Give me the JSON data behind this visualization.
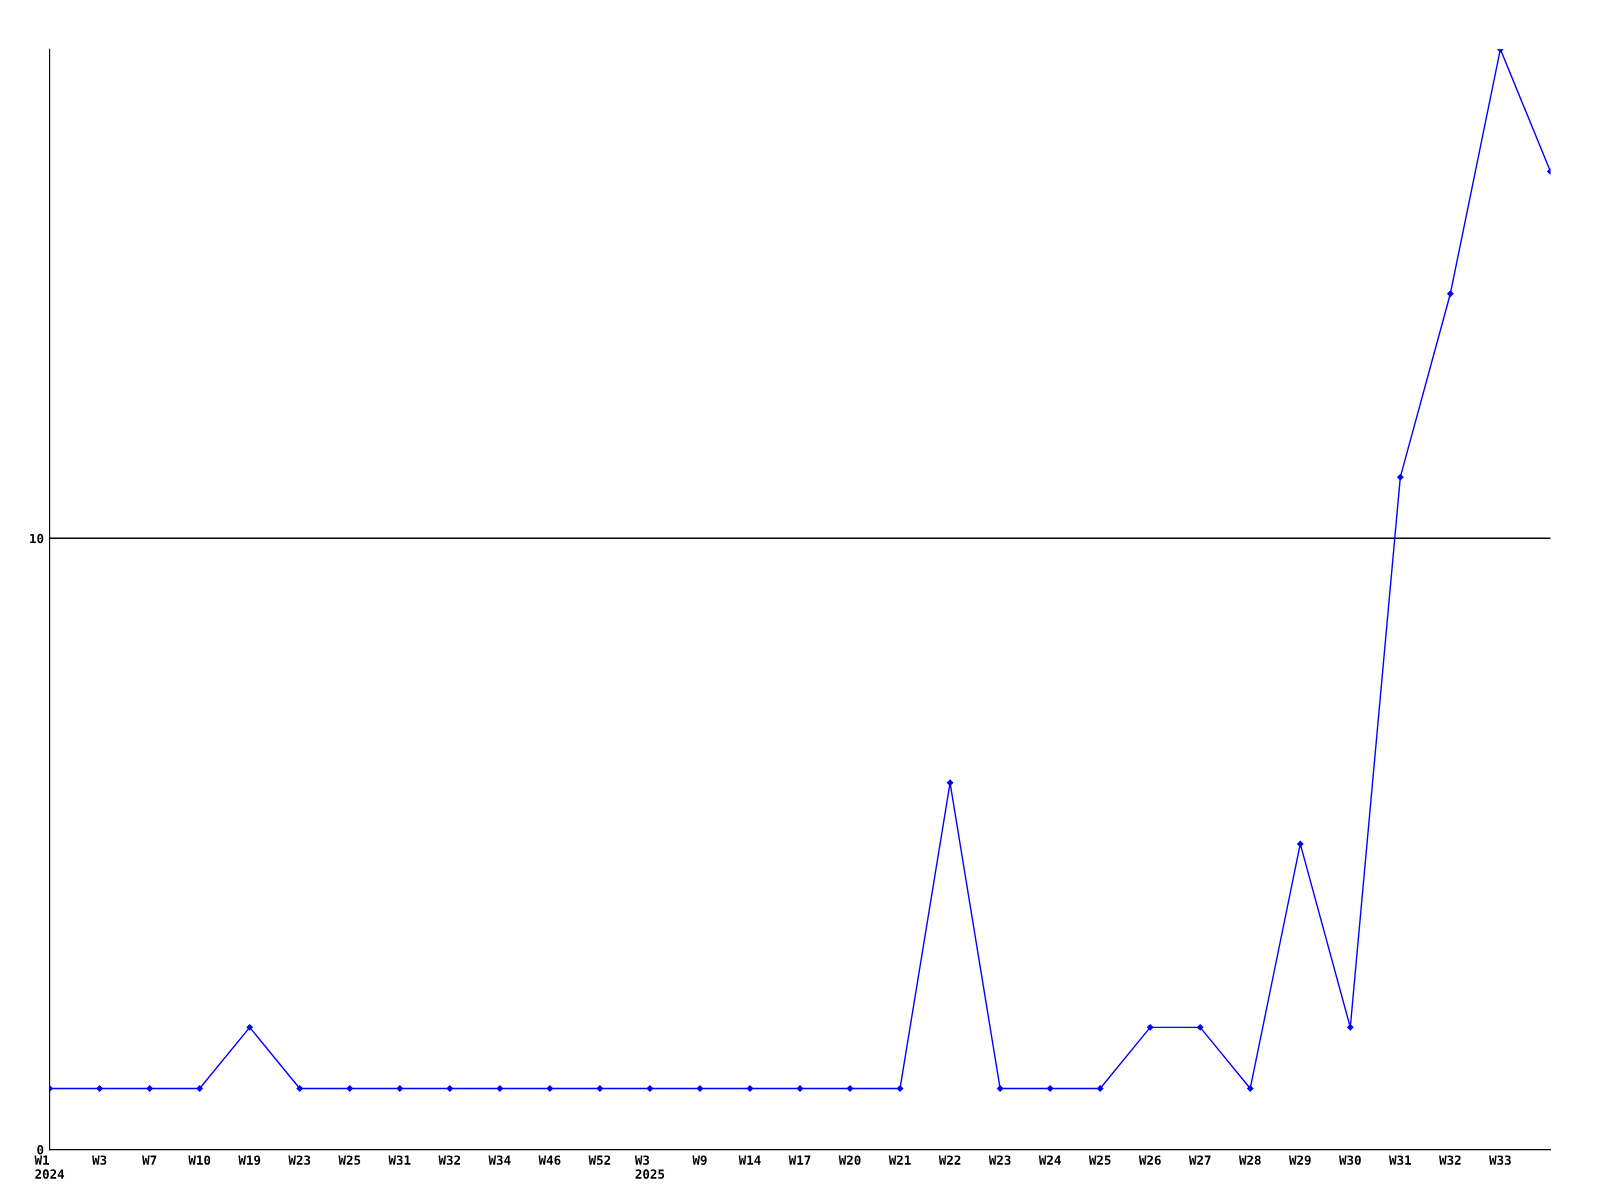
{
  "chart_data": {
    "type": "line",
    "categories": [
      "W1\n2024",
      "W3",
      "W7",
      "W10",
      "W19",
      "W23",
      "W25",
      "W31",
      "W32",
      "W34",
      "W46",
      "W52",
      "W3\n2025",
      "W9",
      "W14",
      "W17",
      "W20",
      "W21",
      "W22",
      "W23",
      "W24",
      "W25",
      "W26",
      "W27",
      "W28",
      "W29",
      "W30",
      "W31",
      "W32",
      "W33",
      null
    ],
    "series": [
      {
        "color": "#0000ff",
        "values": [
          1,
          1,
          1,
          1,
          2,
          1,
          1,
          1,
          1,
          1,
          1,
          1,
          1,
          1,
          1,
          1,
          1,
          1,
          6,
          1,
          1,
          1,
          2,
          2,
          1,
          5,
          2,
          11,
          14,
          18,
          16
        ]
      }
    ],
    "ylim": [
      0,
      18
    ],
    "yticks": [
      0,
      10
    ],
    "grid": "y",
    "marker": "diamond",
    "line_style": "solid"
  }
}
